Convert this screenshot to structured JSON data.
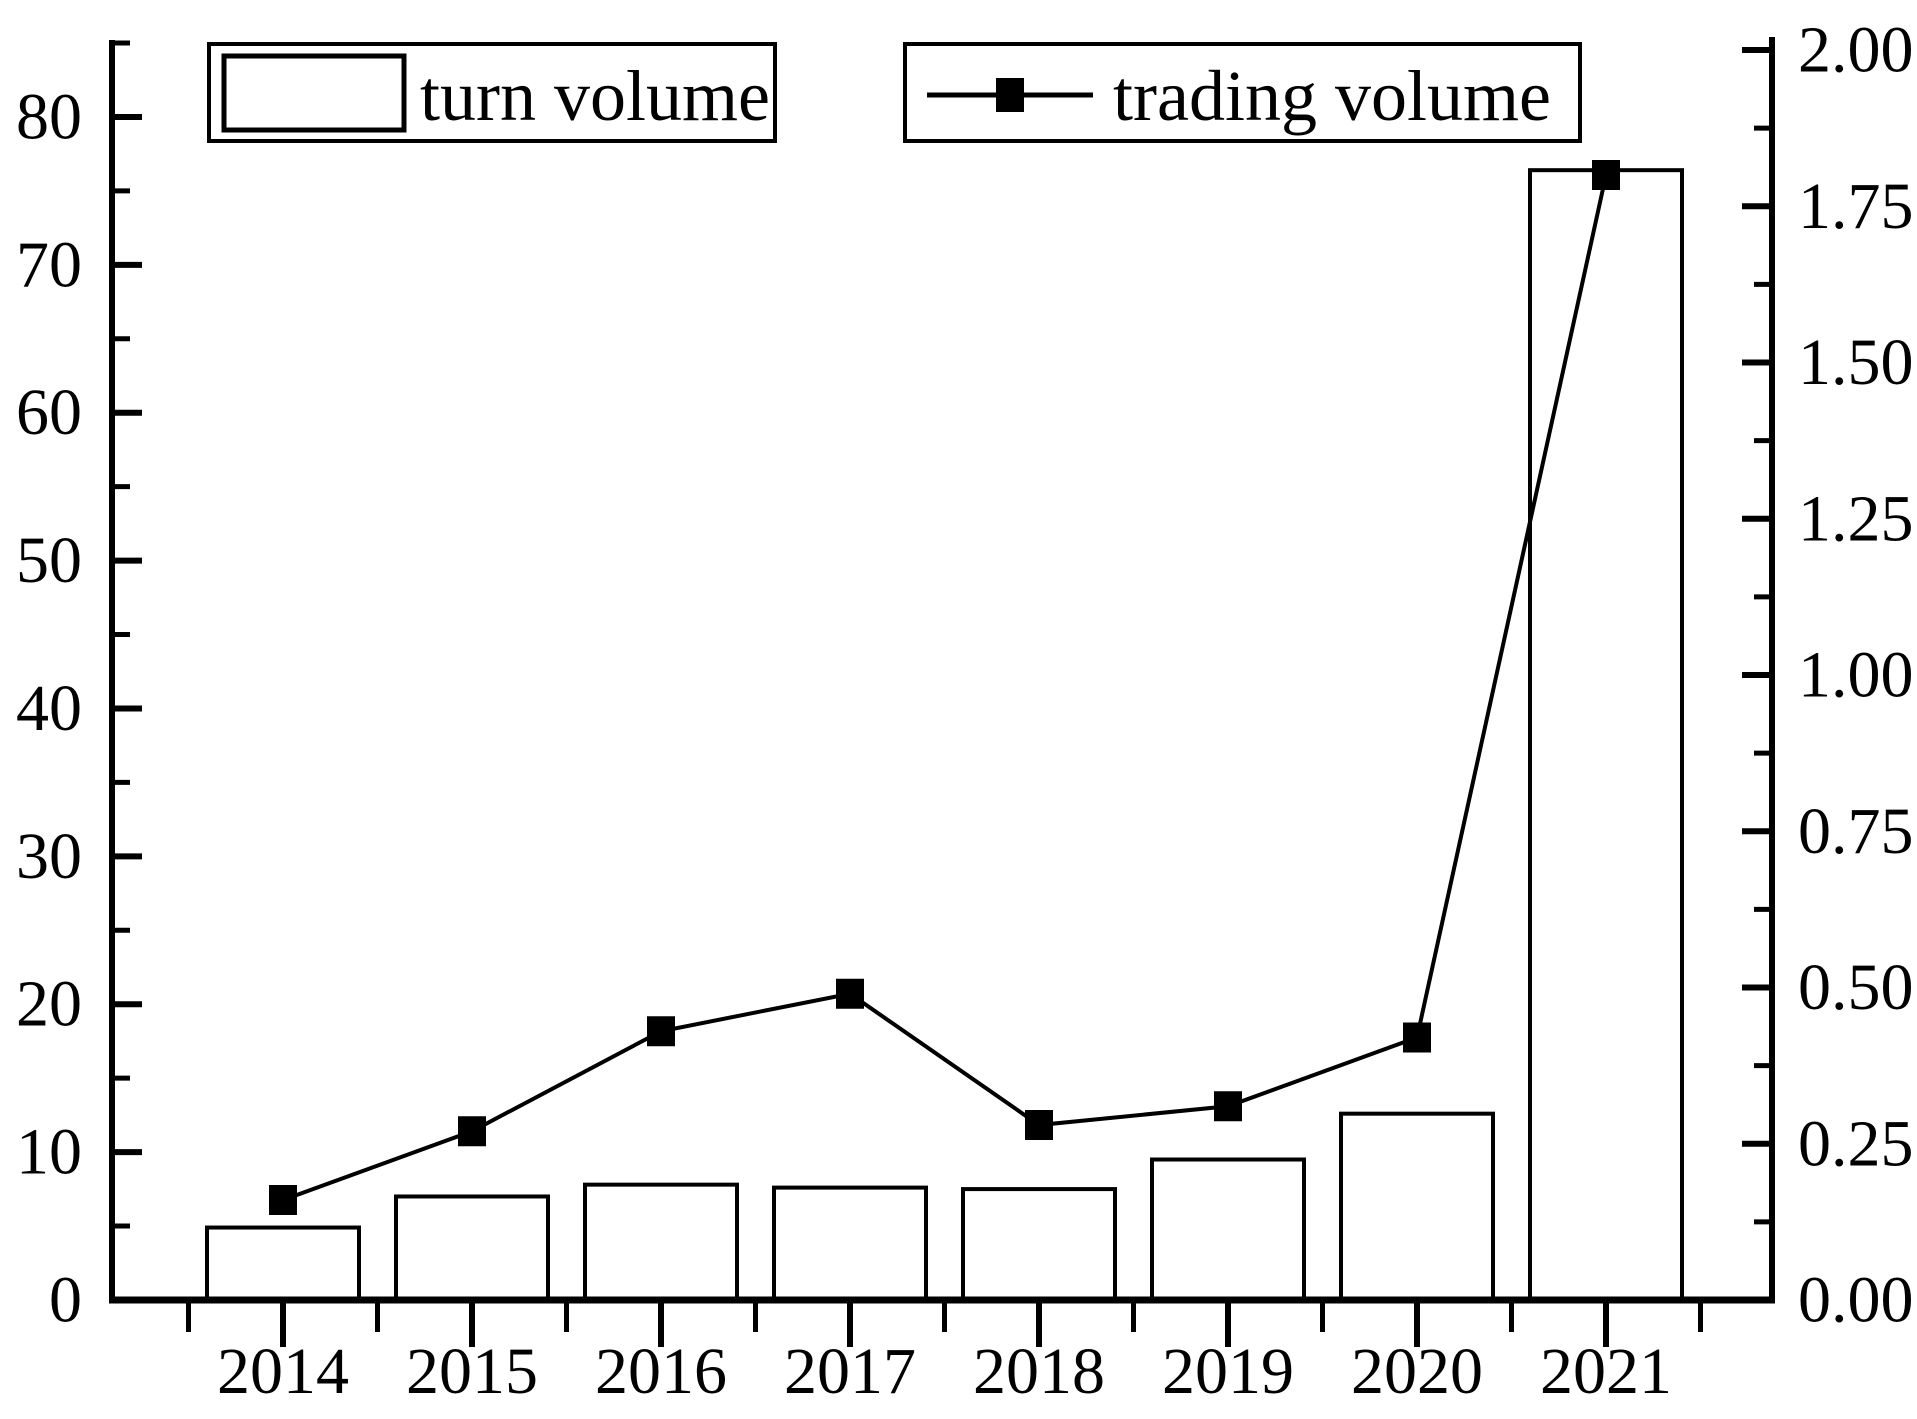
{
  "figure": {
    "background_color": "#ffffff",
    "ink_color": "#000000"
  },
  "legend": {
    "items": [
      {
        "label": "turn volume",
        "swatch": "open-bar-rectangle"
      },
      {
        "label": "trading volume",
        "swatch": "line-with-filled-square-marker"
      }
    ]
  },
  "chart_data": {
    "type": "bar",
    "subtype": "dual-axis bar + line combo",
    "title": "",
    "xlabel": "",
    "ylabel_left": "",
    "ylabel_right": "",
    "grid": false,
    "legend_position": "top-inside",
    "categories": [
      "2014",
      "2015",
      "2016",
      "2017",
      "2018",
      "2019",
      "2020",
      "2021"
    ],
    "series": [
      {
        "name": "turn volume",
        "type": "bar",
        "axis": "left",
        "fill": "#ffffff",
        "stroke": "#000000",
        "values": [
          4.9,
          7.0,
          7.8,
          7.6,
          7.5,
          9.5,
          12.6,
          76.4
        ]
      },
      {
        "name": "trading volume",
        "type": "line",
        "axis": "right",
        "marker": "filled-square",
        "color": "#000000",
        "values": [
          0.16,
          0.27,
          0.43,
          0.49,
          0.28,
          0.31,
          0.42,
          1.8
        ]
      }
    ],
    "left_axis": {
      "ylim": [
        0,
        85
      ],
      "major_tick_values": [
        0,
        10,
        20,
        30,
        40,
        50,
        60,
        70,
        80
      ],
      "major_tick_labels": [
        "0",
        "10",
        "20",
        "30",
        "40",
        "50",
        "60",
        "70",
        "80"
      ],
      "minor_step": 5
    },
    "right_axis": {
      "ylim": [
        0,
        2.011
      ],
      "major_tick_values": [
        0,
        0.25,
        0.5,
        0.75,
        1.0,
        1.25,
        1.5,
        1.75,
        2.0
      ],
      "major_tick_labels": [
        "0.00",
        "0.25",
        "0.50",
        "0.75",
        "1.00",
        "1.25",
        "1.50",
        "1.75",
        "2.00"
      ],
      "minor_step": 0.125
    }
  }
}
